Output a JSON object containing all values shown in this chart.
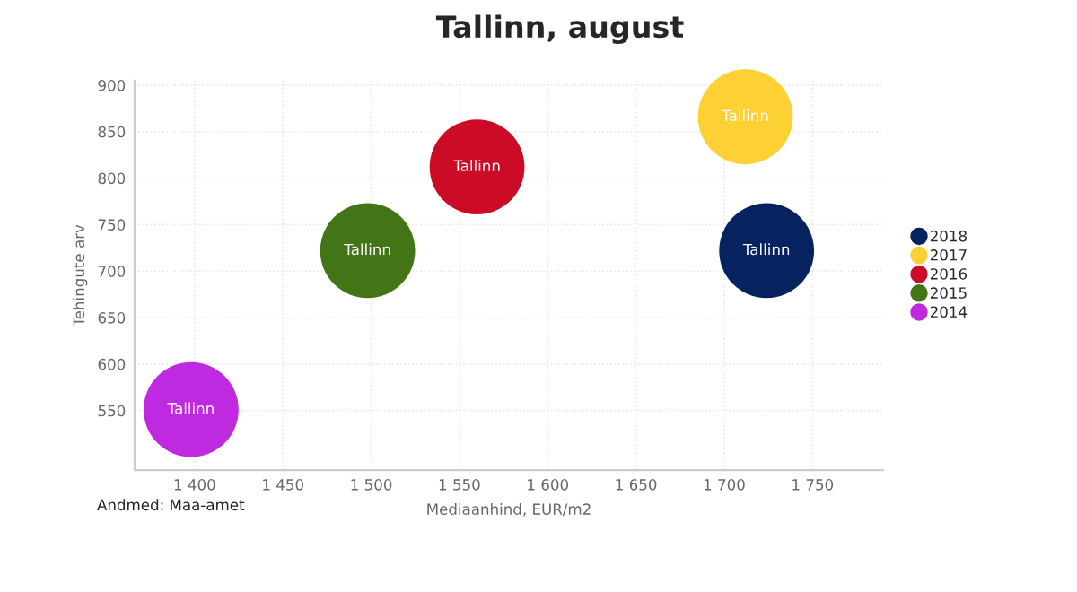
{
  "chart_data": {
    "type": "bubble",
    "title": "Tallinn, august",
    "xlabel": "Mediaanhind, EUR/m2",
    "ylabel": "Tehingute arv",
    "series": [
      {
        "name": "2018",
        "color": "#06225f",
        "x": [
          1724
        ],
        "values": [
          722
        ],
        "sizes": [
          1
        ]
      },
      {
        "name": "2017",
        "color": "#fdd033",
        "x": [
          1712
        ],
        "values": [
          866
        ],
        "sizes": [
          1
        ]
      },
      {
        "name": "2016",
        "color": "#cc0c26",
        "x": [
          1560
        ],
        "values": [
          812
        ],
        "sizes": [
          1
        ]
      },
      {
        "name": "2015",
        "color": "#437516",
        "x": [
          1498
        ],
        "values": [
          722
        ],
        "sizes": [
          1
        ]
      },
      {
        "name": "2014",
        "color": "#bf2ae0",
        "x": [
          1398
        ],
        "values": [
          551
        ],
        "sizes": [
          1
        ]
      }
    ],
    "annotations": [
      {
        "text": "Tallinn",
        "x": 1724,
        "y": 722
      },
      {
        "text": "Tallinn",
        "x": 1712,
        "y": 866
      },
      {
        "text": "Tallinn",
        "x": 1560,
        "y": 812
      },
      {
        "text": "Tallinn",
        "x": 1498,
        "y": 722
      },
      {
        "text": "Tallinn",
        "x": 1398,
        "y": 551
      },
      "Andmed: Maa-amet"
    ],
    "xlim": [
      1366,
      1790
    ],
    "xticks": [
      {
        "value": 1400,
        "label": "1 400"
      },
      {
        "value": 1450,
        "label": "1 450"
      },
      {
        "value": 1500,
        "label": "1 500"
      },
      {
        "value": 1550,
        "label": "1 550"
      },
      {
        "value": 1600,
        "label": "1 600"
      },
      {
        "value": 1650,
        "label": "1 650"
      },
      {
        "value": 1700,
        "label": "1 700"
      },
      {
        "value": 1750,
        "label": "1 750"
      }
    ],
    "ylim": [
      486,
      905
    ],
    "yticks": [
      550,
      600,
      650,
      700,
      750,
      800,
      850,
      900
    ],
    "grid": true,
    "legend": "right"
  }
}
